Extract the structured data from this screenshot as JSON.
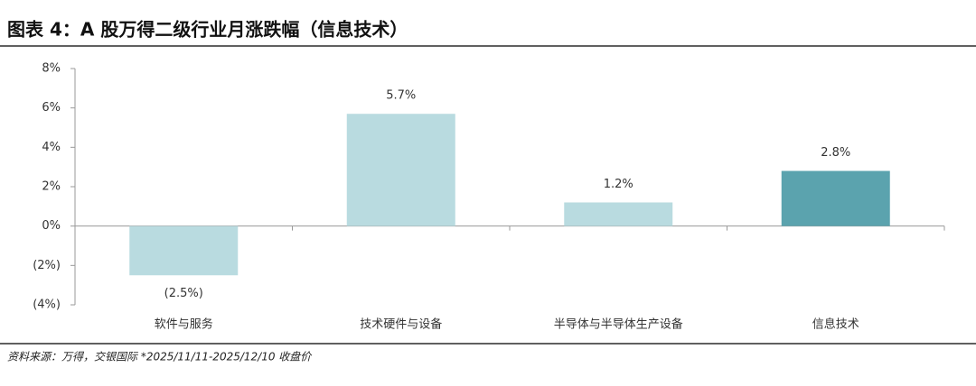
{
  "chart_data": {
    "type": "bar",
    "title": "图表 4：A 股万得二级行业月涨跌幅（信息技术）",
    "categories": [
      "软件与服务",
      "技术硬件与设备",
      "半导体与半导体生产设备",
      "信息技术"
    ],
    "values": [
      -2.5,
      5.7,
      1.2,
      2.8
    ],
    "value_labels": [
      "(2.5%)",
      "5.7%",
      "1.2%",
      "2.8%"
    ],
    "colors": [
      "#b9dbe0",
      "#b9dbe0",
      "#b9dbe0",
      "#5ba3ae"
    ],
    "ylim": [
      -4,
      8
    ],
    "yticks": [
      {
        "value": -4,
        "label": "(4%)"
      },
      {
        "value": -2,
        "label": "(2%)"
      },
      {
        "value": 0,
        "label": "0%"
      },
      {
        "value": 2,
        "label": "2%"
      },
      {
        "value": 4,
        "label": "4%"
      },
      {
        "value": 6,
        "label": "6%"
      },
      {
        "value": 8,
        "label": "8%"
      }
    ],
    "grid": false,
    "source": "资料来源：万得，交银国际    *2025/11/11-2025/12/10 收盘价"
  }
}
